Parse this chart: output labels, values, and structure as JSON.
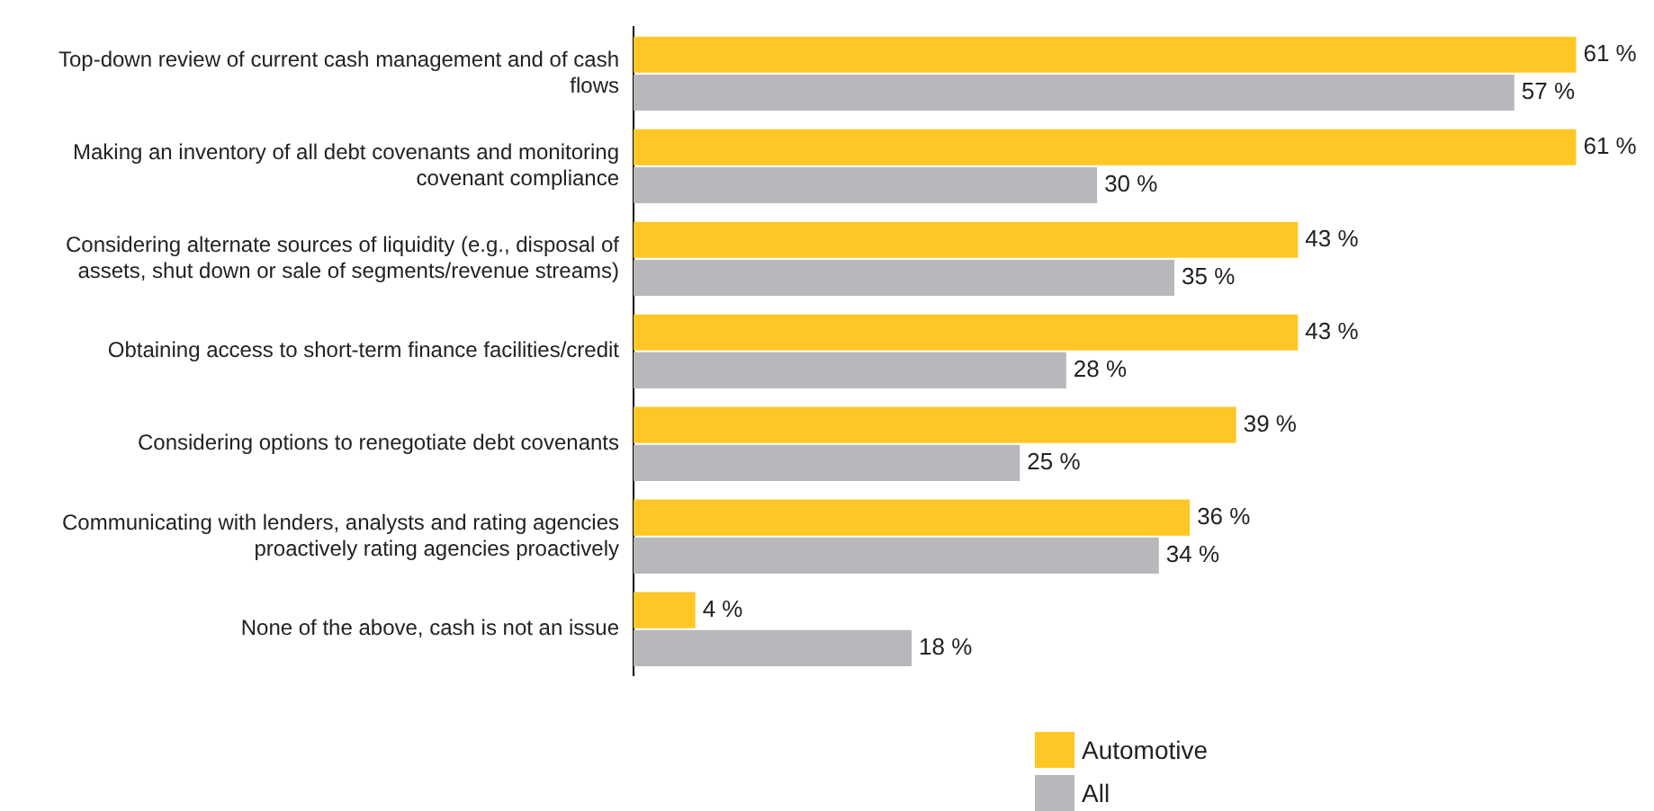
{
  "chart_data": {
    "type": "bar",
    "orientation": "horizontal",
    "legend": "bottom",
    "grid": false,
    "categories": [
      "Top-down review of current cash management and of cash flows",
      "Making an inventory of all debt covenants and monitoring covenant compliance",
      "Considering alternate sources of liquidity (e.g., disposal of assets, shut down or sale of segments/revenue streams)",
      "Obtaining access to short-term finance facilities/credit",
      "Considering options to renegotiate debt covenants",
      "Communicating with lenders, analysts and rating agencies proactively rating agencies proactively",
      "None of the above, cash is not an issue"
    ],
    "series": [
      {
        "name": "Automotive",
        "color": "#ffc726",
        "values": [
          61,
          61,
          43,
          43,
          39,
          36,
          4
        ],
        "value_labels": [
          "61 %",
          "61 %",
          "43 %",
          "43 %",
          "39 %",
          "36 %",
          "4 %"
        ]
      },
      {
        "name": "All",
        "color": "#b8b8bc",
        "values": [
          57,
          30,
          35,
          28,
          25,
          34,
          18
        ],
        "value_labels": [
          "57 %",
          "30 %",
          "35 %",
          "28 %",
          "25 %",
          "34 %",
          "18 %"
        ]
      }
    ]
  }
}
